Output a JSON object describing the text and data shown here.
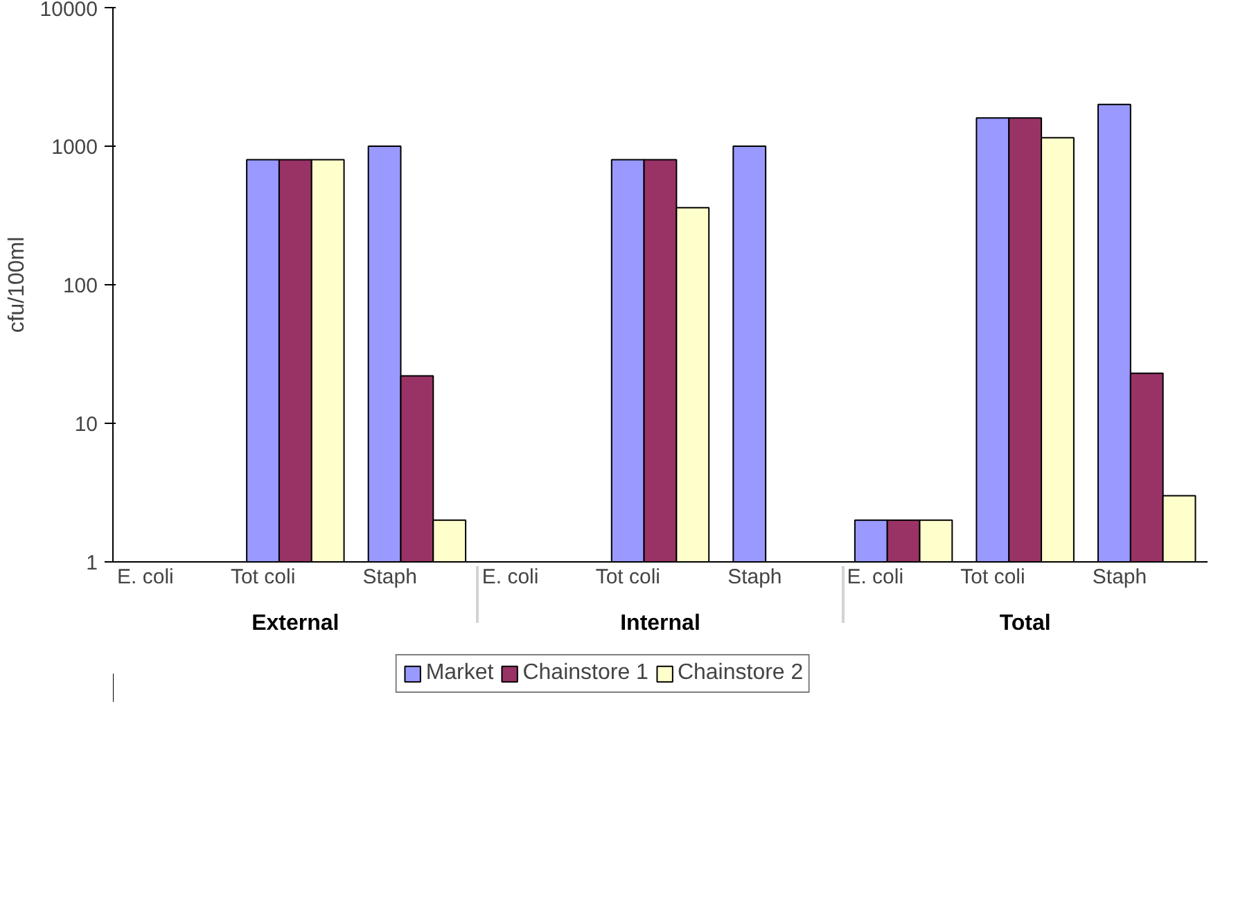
{
  "chart_data": {
    "type": "bar",
    "ylabel": "cfu/100ml",
    "log": true,
    "ylim": [
      1,
      10000
    ],
    "yticks": [
      1,
      10,
      100,
      1000,
      10000
    ],
    "grid": false,
    "legend": "bottom",
    "categories": [
      "E. coli",
      "Tot coli",
      "Staph",
      "E. coli",
      "Tot coli",
      "Staph",
      "E. coli",
      "Tot coli",
      "Staph"
    ],
    "annotations": [
      "External",
      "Internal",
      "Total"
    ],
    "series": [
      {
        "name": "Market",
        "color": "#9999ff",
        "values": [
          null,
          800,
          1000,
          null,
          800,
          1000,
          2,
          1600,
          2000
        ]
      },
      {
        "name": "Chainstore 1",
        "color": "#993366",
        "values": [
          null,
          800,
          22,
          null,
          800,
          null,
          2,
          1600,
          23
        ]
      },
      {
        "name": "Chainstore 2",
        "color": "#ffffcc",
        "values": [
          null,
          800,
          2,
          null,
          360,
          null,
          2,
          1150,
          3
        ]
      }
    ]
  }
}
